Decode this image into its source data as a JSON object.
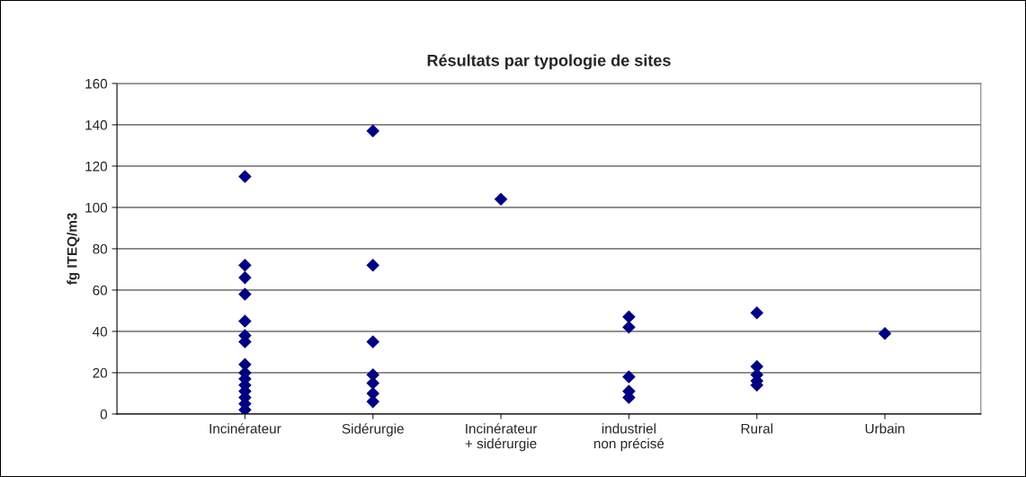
{
  "chart_data": {
    "type": "scatter",
    "title": "Résultats par typologie de sites",
    "ylabel": "fg ITEQ/m3",
    "categories": [
      "Incinérateur",
      "Sidérurgie",
      "Incinérateur\n+ sidérurgie",
      "industriel\nnon précisé",
      "Rural",
      "Urbain"
    ],
    "series": [
      {
        "color": "#000080",
        "x": [
          "Incinérateur",
          "Incinérateur",
          "Incinérateur",
          "Incinérateur",
          "Incinérateur",
          "Incinérateur",
          "Incinérateur",
          "Incinérateur",
          "Incinérateur",
          "Incinérateur",
          "Incinérateur",
          "Incinérateur",
          "Incinérateur",
          "Incinérateur",
          "Incinérateur"
        ],
        "values": [
          115,
          72,
          66,
          58,
          45,
          38,
          35,
          24,
          20,
          17,
          14,
          11,
          8,
          5,
          2
        ]
      },
      {
        "color": "#000080",
        "x": [
          "Sidérurgie",
          "Sidérurgie",
          "Sidérurgie",
          "Sidérurgie",
          "Sidérurgie",
          "Sidérurgie",
          "Sidérurgie"
        ],
        "values": [
          137,
          72,
          35,
          19,
          15,
          10,
          6
        ]
      },
      {
        "color": "#000080",
        "x": [
          "Incinérateur\n+ sidérurgie"
        ],
        "values": [
          104
        ]
      },
      {
        "color": "#000080",
        "x": [
          "industriel\nnon précisé",
          "industriel\nnon précisé",
          "industriel\nnon précisé",
          "industriel\nnon précisé",
          "industriel\nnon précisé"
        ],
        "values": [
          47,
          42,
          18,
          11,
          8
        ]
      },
      {
        "color": "#000080",
        "x": [
          "Rural",
          "Rural",
          "Rural",
          "Rural",
          "Rural"
        ],
        "values": [
          49,
          23,
          19,
          16,
          14
        ]
      },
      {
        "color": "#000080",
        "x": [
          "Urbain"
        ],
        "values": [
          39
        ]
      }
    ],
    "ylim": [
      0,
      160
    ],
    "yticks": [
      0,
      20,
      40,
      60,
      80,
      100,
      120,
      140,
      160
    ],
    "grid": "y",
    "marker": "diamond",
    "legend": false
  }
}
